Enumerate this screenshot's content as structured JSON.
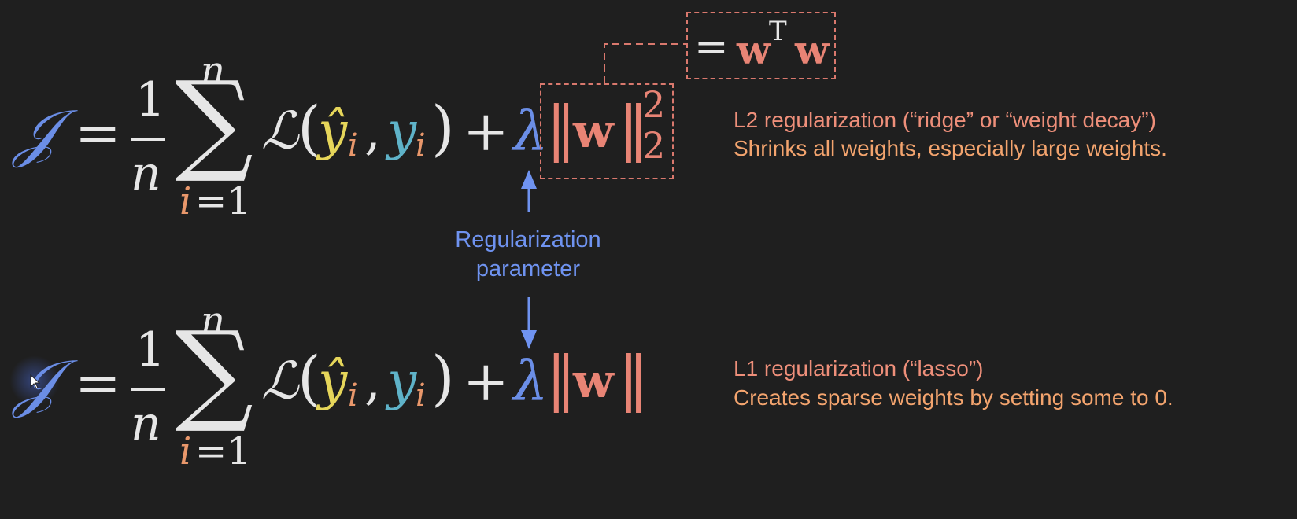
{
  "equation": {
    "cost_symbol": "𝒥",
    "equals": "=",
    "frac_numerator": "1",
    "frac_denominator": "n",
    "sum_symbol": "∑",
    "sum_upper": "n",
    "sum_lower_var": "i",
    "sum_lower_eq": "=1",
    "loss_symbol": "ℒ",
    "open_paren": "(",
    "yhat": "ŷ",
    "y": "y",
    "sub_i": "i",
    "comma": ",",
    "close_paren": ")",
    "plus": "+",
    "lambda": "λ",
    "norm_bar": "‖",
    "w": "w",
    "exponent": "2",
    "subscript": "2"
  },
  "wtw": {
    "equals": "=",
    "w1": "w",
    "T": "T",
    "w2": "w"
  },
  "l2": {
    "line1": "L2 regularization (“ridge” or “weight decay”)",
    "line2": "Shrinks all weights, especially large weights."
  },
  "l1": {
    "line1": "L1 regularization (“lasso”)",
    "line2": "Creates sparse weights by setting some to 0."
  },
  "param_label": {
    "line1": "Regularization",
    "line2": "parameter"
  },
  "colors": {
    "background": "#1f1f1f",
    "blue": "#6b8ee6",
    "red": "#e88475",
    "orange": "#f3a46e",
    "yellow": "#e6d65a",
    "teal": "#5fb3c9"
  }
}
